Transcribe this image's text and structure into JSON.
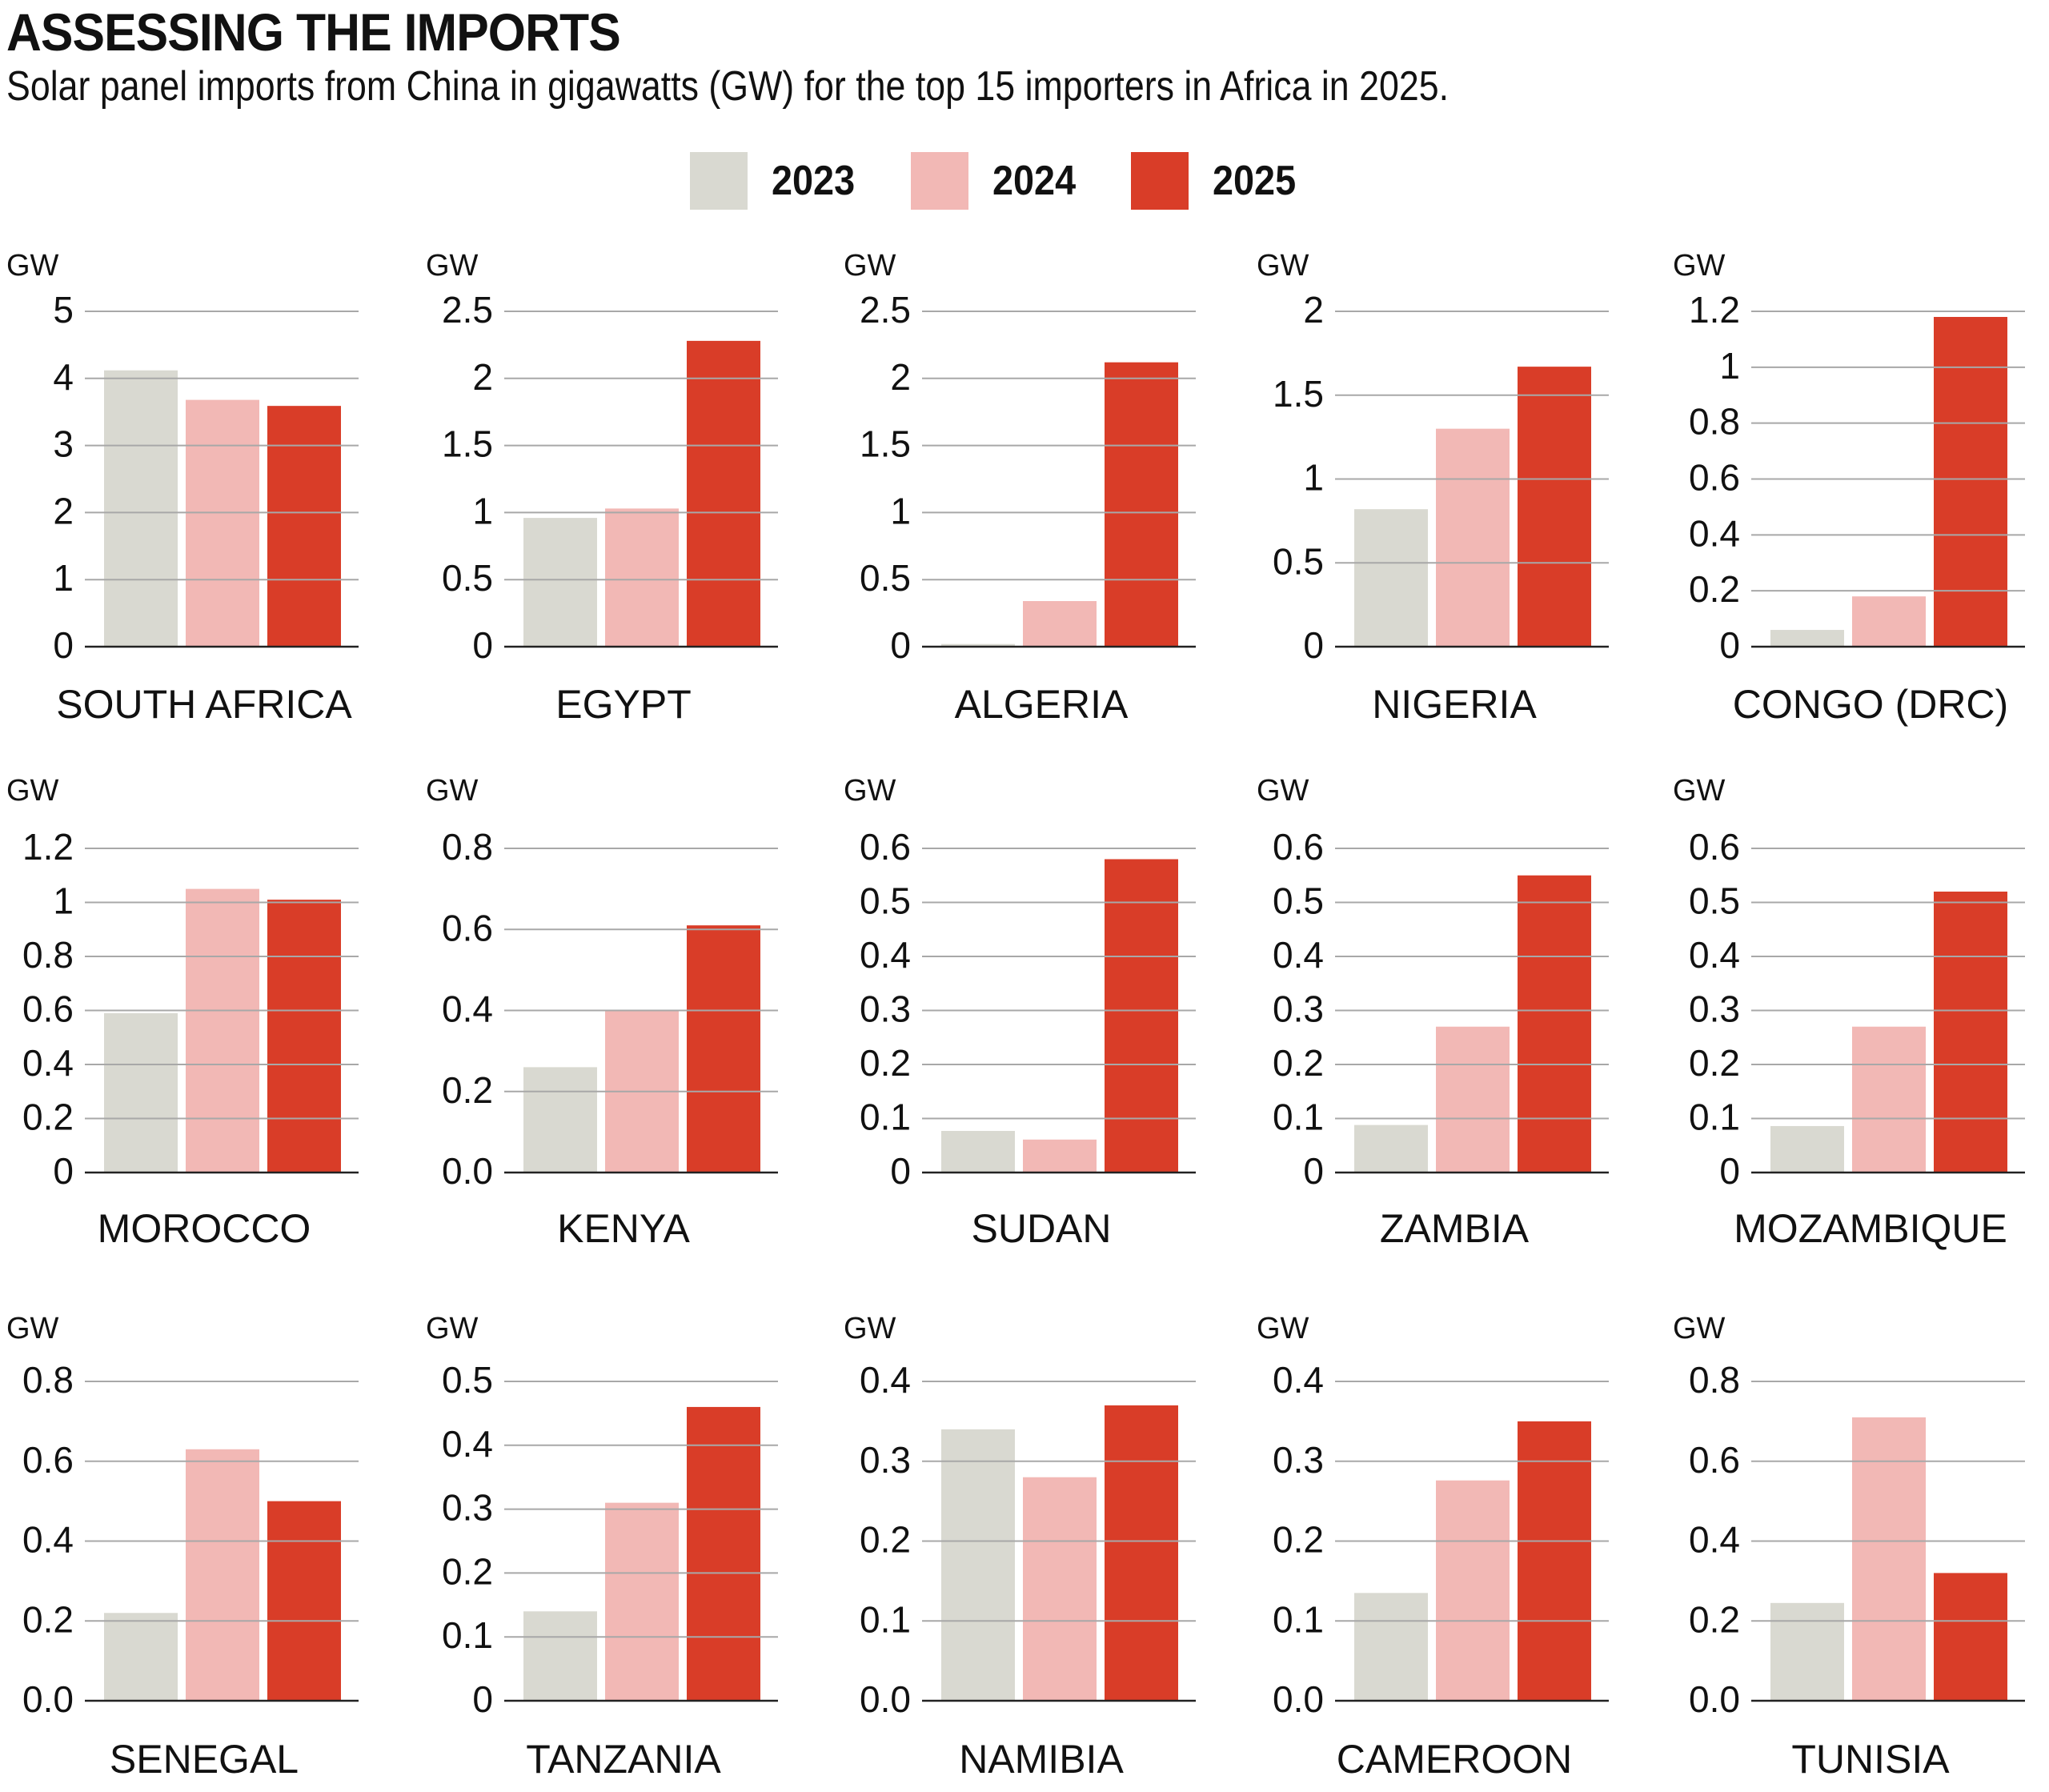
{
  "header": {
    "title": "ASSESSING THE IMPORTS",
    "subtitle": "Solar panel imports from China in gigawatts (GW) for the top 15 importers in Africa in 2025."
  },
  "legend": [
    {
      "label": "2023",
      "color": "#d9d9d1"
    },
    {
      "label": "2024",
      "color": "#f2b8b5"
    },
    {
      "label": "2025",
      "color": "#d93d28"
    }
  ],
  "chart_data": {
    "type": "bar",
    "title": "ASSESSING THE IMPORTS",
    "subtitle": "Solar panel imports from China in gigawatts (GW) for the top 15 importers in Africa in 2025.",
    "unit_label": "GW",
    "series_names": [
      "2023",
      "2024",
      "2025"
    ],
    "legend_position": "top-center",
    "grid": true,
    "panels": [
      {
        "country": "SOUTH AFRICA",
        "ylim": [
          0,
          5
        ],
        "ticks": [
          "0",
          "1",
          "2",
          "3",
          "4",
          "5"
        ],
        "tick_values": [
          0,
          1,
          2,
          3,
          4,
          5
        ],
        "values": [
          4.12,
          3.68,
          3.59
        ]
      },
      {
        "country": "EGYPT",
        "ylim": [
          0,
          2.5
        ],
        "ticks": [
          "0",
          "0.5",
          "1",
          "1.5",
          "2",
          "2.5"
        ],
        "tick_values": [
          0,
          0.5,
          1,
          1.5,
          2,
          2.5
        ],
        "values": [
          0.96,
          1.03,
          2.28
        ]
      },
      {
        "country": "ALGERIA",
        "ylim": [
          0,
          2.5
        ],
        "ticks": [
          "0",
          "0.5",
          "1",
          "1.5",
          "2",
          "2.5"
        ],
        "tick_values": [
          0,
          0.5,
          1,
          1.5,
          2,
          2.5
        ],
        "values": [
          0.02,
          0.34,
          2.12
        ]
      },
      {
        "country": "NIGERIA",
        "ylim": [
          0,
          2
        ],
        "ticks": [
          "0",
          "0.5",
          "1",
          "1.5",
          "2"
        ],
        "tick_values": [
          0,
          0.5,
          1,
          1.5,
          2
        ],
        "values": [
          0.82,
          1.3,
          1.67
        ]
      },
      {
        "country": "CONGO (DRC)",
        "ylim": [
          0,
          1.2
        ],
        "ticks": [
          "0",
          "0.2",
          "0.4",
          "0.6",
          "0.8",
          "1",
          "1.2"
        ],
        "tick_values": [
          0,
          0.2,
          0.4,
          0.6,
          0.8,
          1,
          1.2
        ],
        "values": [
          0.06,
          0.18,
          1.18
        ]
      },
      {
        "country": "MOROCCO",
        "ylim": [
          0,
          1.2
        ],
        "ticks": [
          "0",
          "0.2",
          "0.4",
          "0.6",
          "0.8",
          "1",
          "1.2"
        ],
        "tick_values": [
          0,
          0.2,
          0.4,
          0.6,
          0.8,
          1,
          1.2
        ],
        "values": [
          0.59,
          1.05,
          1.01
        ]
      },
      {
        "country": "KENYA",
        "ylim": [
          0,
          0.8
        ],
        "ticks": [
          "0.0",
          "0.2",
          "0.4",
          "0.6",
          "0.8"
        ],
        "tick_values": [
          0,
          0.2,
          0.4,
          0.6,
          0.8
        ],
        "values": [
          0.26,
          0.4,
          0.61
        ]
      },
      {
        "country": "SUDAN",
        "ylim": [
          0,
          0.6
        ],
        "ticks": [
          "0",
          "0.1",
          "0.2",
          "0.3",
          "0.4",
          "0.5",
          "0.6"
        ],
        "tick_values": [
          0,
          0.1,
          0.2,
          0.3,
          0.4,
          0.5,
          0.6
        ],
        "values": [
          0.077,
          0.061,
          0.58
        ]
      },
      {
        "country": "ZAMBIA",
        "ylim": [
          0,
          0.6
        ],
        "ticks": [
          "0",
          "0.1",
          "0.2",
          "0.3",
          "0.4",
          "0.5",
          "0.6"
        ],
        "tick_values": [
          0,
          0.1,
          0.2,
          0.3,
          0.4,
          0.5,
          0.6
        ],
        "values": [
          0.088,
          0.27,
          0.55
        ]
      },
      {
        "country": "MOZAMBIQUE",
        "ylim": [
          0,
          0.6
        ],
        "ticks": [
          "0",
          "0.1",
          "0.2",
          "0.3",
          "0.4",
          "0.5",
          "0.6"
        ],
        "tick_values": [
          0,
          0.1,
          0.2,
          0.3,
          0.4,
          0.5,
          0.6
        ],
        "values": [
          0.086,
          0.27,
          0.52
        ]
      },
      {
        "country": "SENEGAL",
        "ylim": [
          0,
          0.8
        ],
        "ticks": [
          "0.0",
          "0.2",
          "0.4",
          "0.6",
          "0.8"
        ],
        "tick_values": [
          0,
          0.2,
          0.4,
          0.6,
          0.8
        ],
        "values": [
          0.22,
          0.63,
          0.5
        ]
      },
      {
        "country": "TANZANIA",
        "ylim": [
          0,
          0.5
        ],
        "ticks": [
          "0",
          "0.1",
          "0.2",
          "0.3",
          "0.4",
          "0.5"
        ],
        "tick_values": [
          0,
          0.1,
          0.2,
          0.3,
          0.4,
          0.5
        ],
        "values": [
          0.14,
          0.31,
          0.46
        ]
      },
      {
        "country": "NAMIBIA",
        "ylim": [
          0,
          0.4
        ],
        "ticks": [
          "0.0",
          "0.1",
          "0.2",
          "0.3",
          "0.4"
        ],
        "tick_values": [
          0,
          0.1,
          0.2,
          0.3,
          0.4
        ],
        "values": [
          0.34,
          0.28,
          0.37
        ]
      },
      {
        "country": "CAMEROON",
        "ylim": [
          0,
          0.4
        ],
        "ticks": [
          "0.0",
          "0.1",
          "0.2",
          "0.3",
          "0.4"
        ],
        "tick_values": [
          0,
          0.1,
          0.2,
          0.3,
          0.4
        ],
        "values": [
          0.135,
          0.276,
          0.35
        ]
      },
      {
        "country": "TUNISIA",
        "ylim": [
          0,
          0.8
        ],
        "ticks": [
          "0.0",
          "0.2",
          "0.4",
          "0.6",
          "0.8"
        ],
        "tick_values": [
          0,
          0.2,
          0.4,
          0.6,
          0.8
        ],
        "values": [
          0.245,
          0.71,
          0.32
        ]
      }
    ]
  }
}
